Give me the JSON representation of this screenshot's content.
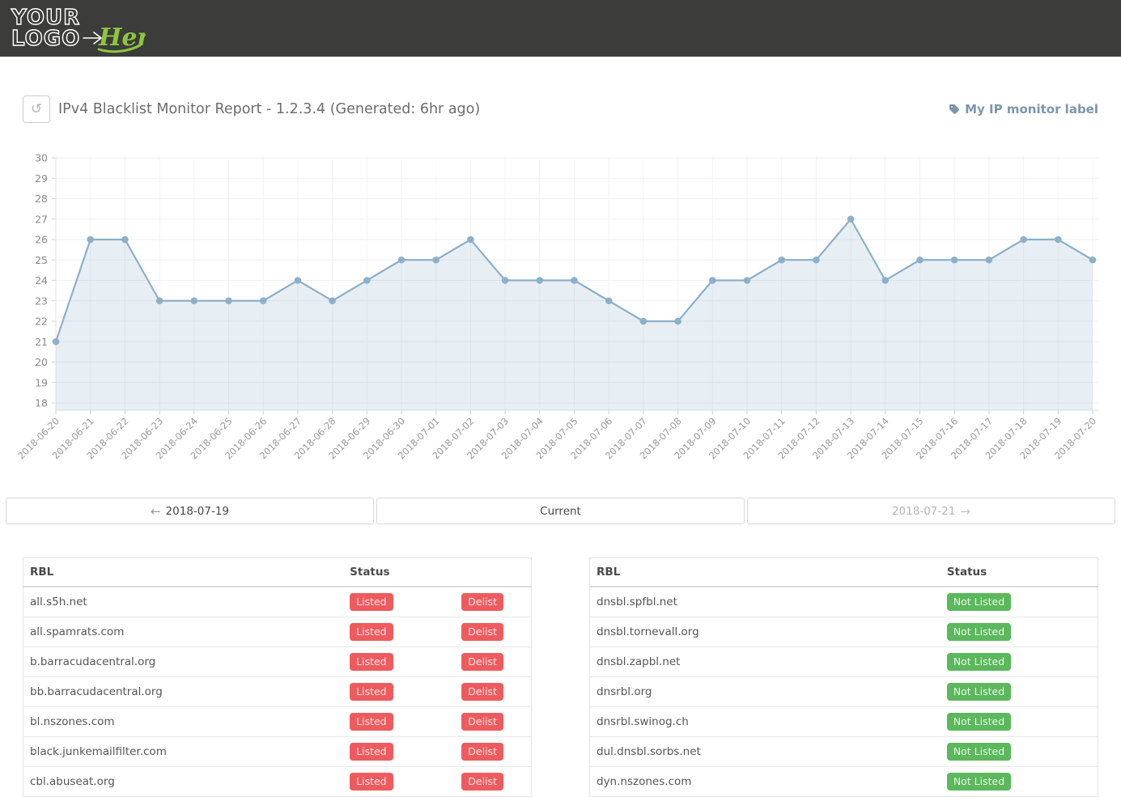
{
  "logo": {
    "line1": "YOUR",
    "line2": "LOGO",
    "accent": "Here",
    "accent_color": "#8dc63f"
  },
  "header": {
    "title": "IPv4 Blacklist Monitor Report - 1.2.3.4 (Generated: 6hr ago)",
    "monitor_label": "My IP monitor label",
    "refresh_icon": "history-refresh-icon"
  },
  "chart_data": {
    "type": "area",
    "title": "",
    "xlabel": "",
    "ylabel": "",
    "x": [
      "2018-06-20",
      "2018-06-21",
      "2018-06-22",
      "2018-06-23",
      "2018-06-24",
      "2018-06-25",
      "2018-06-26",
      "2018-06-27",
      "2018-06-28",
      "2018-06-29",
      "2018-06-30",
      "2018-07-01",
      "2018-07-02",
      "2018-07-03",
      "2018-07-04",
      "2018-07-05",
      "2018-07-06",
      "2018-07-07",
      "2018-07-08",
      "2018-07-09",
      "2018-07-10",
      "2018-07-11",
      "2018-07-12",
      "2018-07-13",
      "2018-07-14",
      "2018-07-15",
      "2018-07-16",
      "2018-07-17",
      "2018-07-18",
      "2018-07-19",
      "2018-07-20"
    ],
    "values": [
      21,
      26,
      26,
      23,
      23,
      23,
      23,
      24,
      23,
      24,
      25,
      25,
      26,
      24,
      24,
      24,
      23,
      22,
      22,
      24,
      24,
      25,
      25,
      27,
      24,
      25,
      25,
      25,
      26,
      26,
      25
    ],
    "ylim": [
      18,
      30
    ],
    "ytick_step": 1,
    "grid": true,
    "legend": "none",
    "line_color": "#8cb0ca",
    "point_color": "#8cb0ca",
    "fill_color": "rgba(140,176,202,0.2)"
  },
  "nav": {
    "prev_label": "2018-07-19",
    "current_label": "Current",
    "next_label": "2018-07-21",
    "prev_arrow": "←",
    "next_arrow": "→"
  },
  "tables": {
    "listed": {
      "headers": [
        "RBL",
        "Status"
      ],
      "rows": [
        {
          "rbl": "all.s5h.net",
          "status": "Listed",
          "action": "Delist"
        },
        {
          "rbl": "all.spamrats.com",
          "status": "Listed",
          "action": "Delist"
        },
        {
          "rbl": "b.barracudacentral.org",
          "status": "Listed",
          "action": "Delist"
        },
        {
          "rbl": "bb.barracudacentral.org",
          "status": "Listed",
          "action": "Delist"
        },
        {
          "rbl": "bl.nszones.com",
          "status": "Listed",
          "action": "Delist"
        },
        {
          "rbl": "black.junkemailfilter.com",
          "status": "Listed",
          "action": "Delist"
        },
        {
          "rbl": "cbl.abuseat.org",
          "status": "Listed",
          "action": "Delist"
        }
      ]
    },
    "not_listed": {
      "headers": [
        "RBL",
        "Status"
      ],
      "rows": [
        {
          "rbl": "dnsbl.spfbl.net",
          "status": "Not Listed"
        },
        {
          "rbl": "dnsbl.tornevall.org",
          "status": "Not Listed"
        },
        {
          "rbl": "dnsbl.zapbl.net",
          "status": "Not Listed"
        },
        {
          "rbl": "dnsrbl.org",
          "status": "Not Listed"
        },
        {
          "rbl": "dnsrbl.swinog.ch",
          "status": "Not Listed"
        },
        {
          "rbl": "dul.dnsbl.sorbs.net",
          "status": "Not Listed"
        },
        {
          "rbl": "dyn.nszones.com",
          "status": "Not Listed"
        }
      ]
    }
  },
  "colors": {
    "header_bg": "#3c3c3a",
    "listed_badge": "#ee5b5e",
    "not_listed_badge": "#5cb85c",
    "accent_label": "#7b97ab",
    "chart_line": "#8cb0ca"
  }
}
